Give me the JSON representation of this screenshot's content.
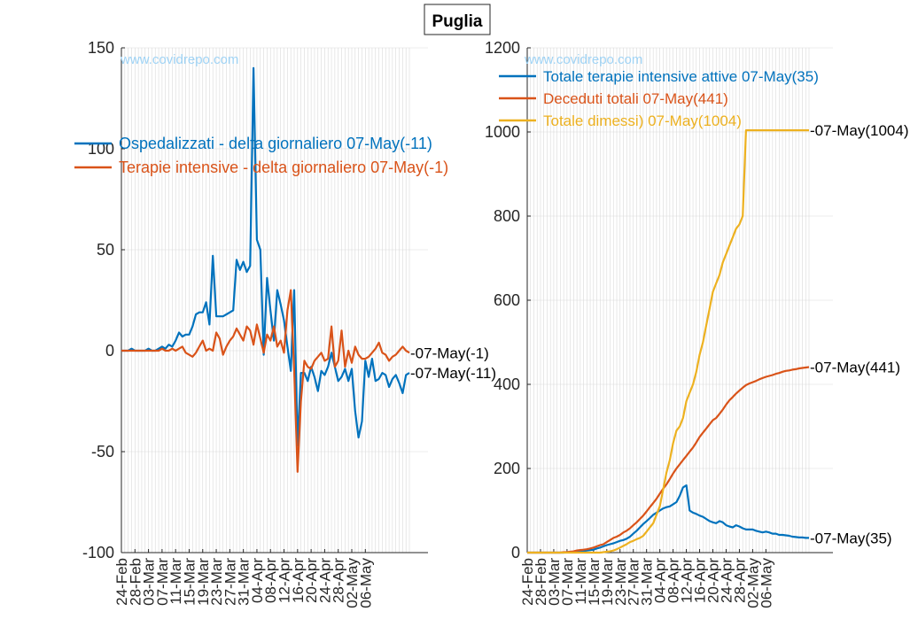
{
  "title": "Puglia",
  "watermark": "www.covidrepo.com",
  "chart_data": [
    {
      "type": "line",
      "ylim": [
        -100,
        150
      ],
      "yticks": [
        -100,
        -50,
        0,
        50,
        100,
        150
      ],
      "ytick_labels": [
        "-100",
        "-50",
        "0",
        "50",
        "100",
        "150"
      ],
      "xtick_labels": [
        "24-Feb",
        "28-Feb",
        "03-Mar",
        "07-Mar",
        "11-Mar",
        "15-Mar",
        "19-Mar",
        "23-Mar",
        "27-Mar",
        "31-Mar",
        "04-Apr",
        "08-Apr",
        "12-Apr",
        "16-Apr",
        "20-Apr",
        "24-Apr",
        "28-Apr",
        "02-May",
        "06-May"
      ],
      "grid": true,
      "legend_position": "top-left",
      "series": [
        {
          "name": "Ospedalizzati - delta giornaliero 07-May(-11)",
          "color": "#0072BD",
          "end_label": "-07-May(-11)",
          "values": [
            0,
            0,
            0,
            1,
            0,
            0,
            0,
            0,
            1,
            0,
            0,
            1,
            2,
            1,
            3,
            2,
            5,
            9,
            7,
            8,
            8,
            12,
            18,
            19,
            19,
            24,
            13,
            47,
            17,
            17,
            17,
            18,
            19,
            20,
            45,
            40,
            44,
            39,
            42,
            140,
            55,
            50,
            -2,
            36,
            20,
            5,
            30,
            23,
            15,
            2,
            -10,
            30,
            -47,
            -11,
            -11,
            -15,
            -8,
            -13,
            -20,
            -10,
            -12,
            -8,
            -1,
            -8,
            -15,
            -13,
            -9,
            -15,
            -9,
            -30,
            -43,
            -35,
            -5,
            -13,
            -4,
            -15,
            -14,
            -11,
            -12,
            -18,
            -14,
            -12,
            -16,
            -21,
            -12,
            -11
          ]
        },
        {
          "name": "Terapie intensive - delta giornaliero 07-May(-1)",
          "color": "#D95319",
          "end_label": "-07-May(-1)",
          "values": [
            0,
            0,
            0,
            0,
            0,
            0,
            0,
            0,
            0,
            0,
            0,
            0,
            1,
            0,
            0,
            1,
            0,
            1,
            2,
            -1,
            -2,
            -3,
            -1,
            2,
            5,
            0,
            1,
            0,
            9,
            6,
            -2,
            2,
            5,
            7,
            11,
            8,
            5,
            12,
            10,
            3,
            13,
            6,
            -1,
            8,
            5,
            12,
            2,
            5,
            -1,
            20,
            30,
            -10,
            -60,
            -25,
            -5,
            -8,
            -9,
            -5,
            -3,
            -1,
            -5,
            -4,
            12,
            -8,
            -5,
            10,
            -8,
            0,
            -6,
            2,
            -2,
            -4,
            -4,
            -3,
            -1,
            1,
            4,
            -1,
            -2,
            -5,
            -3,
            -2,
            0,
            2,
            0,
            -1
          ]
        }
      ]
    },
    {
      "type": "line",
      "ylim": [
        0,
        1200
      ],
      "yticks": [
        0,
        200,
        400,
        600,
        800,
        1000,
        1200
      ],
      "ytick_labels": [
        "0",
        "200",
        "400",
        "600",
        "800",
        "1000",
        "1200"
      ],
      "xtick_labels": [
        "24-Feb",
        "28-Feb",
        "03-Mar",
        "07-Mar",
        "11-Mar",
        "15-Mar",
        "19-Mar",
        "23-Mar",
        "27-Mar",
        "31-Mar",
        "04-Apr",
        "08-Apr",
        "12-Apr",
        "16-Apr",
        "20-Apr",
        "24-Apr",
        "28-Apr",
        "02-May",
        "06-May"
      ],
      "grid": true,
      "legend_position": "top-left",
      "series": [
        {
          "name": "Totale terapie intensive attive 07-May(35)",
          "color": "#0072BD",
          "end_label": "-07-May(35)",
          "values": [
            0,
            0,
            0,
            0,
            0,
            0,
            0,
            0,
            0,
            0,
            0,
            0,
            1,
            1,
            1,
            2,
            2,
            3,
            5,
            6,
            7,
            10,
            12,
            15,
            18,
            20,
            22,
            25,
            28,
            30,
            33,
            38,
            45,
            52,
            60,
            68,
            75,
            82,
            90,
            95,
            100,
            105,
            108,
            110,
            115,
            120,
            135,
            155,
            160,
            100,
            95,
            92,
            88,
            85,
            80,
            75,
            72,
            70,
            75,
            72,
            65,
            62,
            60,
            65,
            62,
            58,
            55,
            55,
            55,
            52,
            50,
            48,
            50,
            48,
            45,
            45,
            42,
            42,
            41,
            40,
            38,
            37,
            36,
            36,
            35,
            35
          ]
        },
        {
          "name": "Deceduti totali 07-May(441)",
          "color": "#D95319",
          "end_label": "-07-May(441)",
          "values": [
            0,
            0,
            0,
            0,
            0,
            0,
            0,
            0,
            0,
            0,
            0,
            1,
            1,
            2,
            3,
            5,
            6,
            7,
            8,
            10,
            12,
            15,
            18,
            20,
            25,
            30,
            35,
            38,
            42,
            48,
            52,
            58,
            65,
            72,
            80,
            88,
            98,
            108,
            118,
            128,
            140,
            152,
            162,
            175,
            188,
            200,
            210,
            220,
            230,
            240,
            250,
            262,
            275,
            285,
            295,
            305,
            315,
            320,
            330,
            340,
            352,
            362,
            370,
            378,
            385,
            392,
            398,
            402,
            405,
            408,
            412,
            415,
            418,
            420,
            422,
            425,
            427,
            430,
            432,
            433,
            435,
            436,
            438,
            439,
            440,
            441
          ]
        },
        {
          "name": "Totale dimessi) 07-May(1004)",
          "color": "#EDB120",
          "end_label": "-07-May(1004)",
          "values": [
            0,
            0,
            0,
            0,
            0,
            0,
            0,
            0,
            0,
            0,
            0,
            0,
            0,
            0,
            0,
            0,
            0,
            0,
            0,
            0,
            0,
            0,
            0,
            1,
            2,
            3,
            5,
            8,
            12,
            16,
            20,
            25,
            28,
            32,
            35,
            40,
            50,
            60,
            70,
            90,
            110,
            150,
            190,
            220,
            260,
            290,
            300,
            320,
            360,
            380,
            400,
            430,
            470,
            500,
            540,
            580,
            620,
            640,
            660,
            690,
            710,
            730,
            750,
            770,
            780,
            800,
            1004,
            1004,
            1004,
            1004,
            1004,
            1004,
            1004,
            1004,
            1004,
            1004,
            1004,
            1004,
            1004,
            1004,
            1004,
            1004,
            1004,
            1004,
            1004,
            1004
          ]
        }
      ]
    }
  ]
}
